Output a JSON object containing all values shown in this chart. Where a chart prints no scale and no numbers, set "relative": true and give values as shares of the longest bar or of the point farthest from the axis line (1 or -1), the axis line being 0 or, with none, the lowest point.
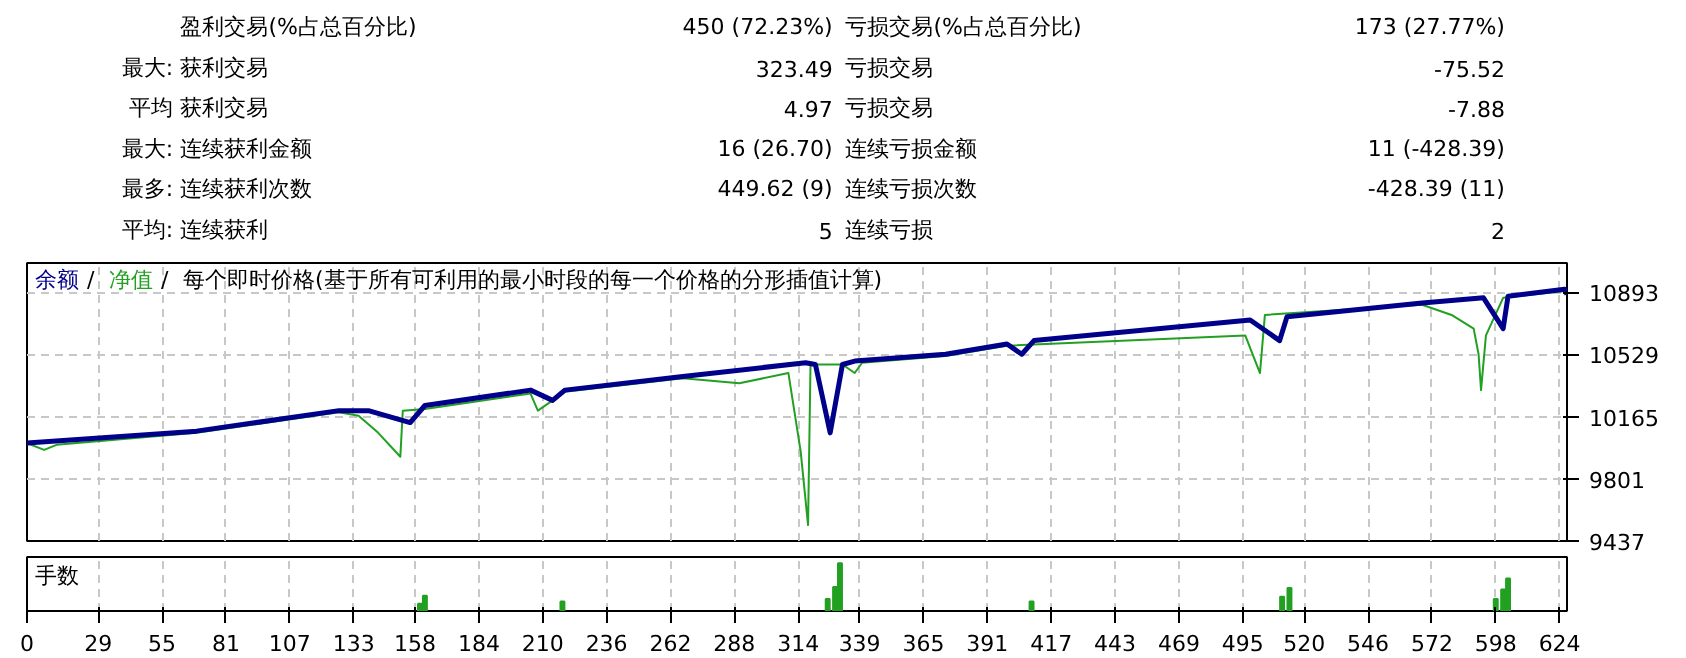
{
  "chart_data": [
    {
      "type": "other",
      "cells": [
        [
          null,
          "盈利交易(%占总百分比)",
          "450 (72.23%)",
          "亏损交易(%占总百分比)",
          "173 (27.77%)"
        ],
        [
          "最大:",
          "获利交易",
          "323.49",
          "亏损交易",
          "-75.52"
        ],
        [
          "平均",
          "获利交易",
          "4.97",
          "亏损交易",
          "-7.88"
        ],
        [
          "最大:",
          "连续获利金额",
          "16 (26.70)",
          "连续亏损金额",
          "11 (-428.39)"
        ],
        [
          "最多:",
          "连续获利次数",
          "449.62 (9)",
          "连续亏损次数",
          "-428.39 (11)"
        ],
        [
          "平均:",
          "连续获利",
          "5",
          "连续亏损",
          "2"
        ]
      ]
    },
    {
      "type": "line",
      "annotations": [
        "/",
        "/"
      ],
      "subtitle": "每个即时价格(基于所有可利用的最小时段的每一个价格的分形插值计算)",
      "legend": "top left",
      "grid": true,
      "tick_labels": "y",
      "xlim": [
        0,
        627
      ],
      "xticks": [
        0,
        29,
        55,
        81,
        107,
        133,
        158,
        184,
        210,
        236,
        262,
        288,
        314,
        339,
        365,
        391,
        417,
        443,
        469,
        495,
        520,
        546,
        572,
        598,
        624
      ],
      "ylim": [
        9437,
        11064
      ],
      "yticks": [
        9437,
        9801,
        10165,
        10529,
        10893
      ],
      "series": [
        {
          "name": "净值",
          "color": "#22a022",
          "x": [
            0,
            7,
            12,
            69,
            127,
            135,
            143,
            152,
            153,
            162,
            205,
            208,
            214,
            219,
            267,
            290,
            310,
            315,
            318,
            319,
            332,
            337,
            340,
            374,
            399,
            496,
            502,
            504,
            568,
            580,
            589,
            591,
            592,
            594,
            601,
            626,
            627
          ],
          "values": [
            10010,
            9970,
            10000,
            10070,
            10190,
            10170,
            10070,
            9930,
            10200,
            10210,
            10300,
            10200,
            10260,
            10310,
            10390,
            10360,
            10420,
            9960,
            9530,
            10470,
            10470,
            10420,
            10480,
            10520,
            10580,
            10640,
            10420,
            10760,
            10820,
            10760,
            10680,
            10530,
            10320,
            10640,
            10860,
            10900,
            10880
          ]
        },
        {
          "name": "余额",
          "color": "#00008b",
          "x": [
            0,
            69,
            127,
            139,
            156,
            162,
            205,
            214,
            219,
            267,
            317,
            321,
            327,
            332,
            337,
            374,
            399,
            405,
            410,
            498,
            510,
            513,
            568,
            593,
            601,
            603,
            626,
            627
          ],
          "values": [
            10010,
            10080,
            10200,
            10200,
            10130,
            10230,
            10320,
            10260,
            10320,
            10400,
            10480,
            10470,
            10070,
            10470,
            10490,
            10530,
            10590,
            10530,
            10610,
            10730,
            10610,
            10750,
            10830,
            10860,
            10680,
            10870,
            10910,
            10880
          ]
        }
      ]
    },
    {
      "type": "bar",
      "title": "手数",
      "relative": true,
      "grid": "x",
      "tick_labels": "x",
      "color": "#22a022",
      "xlim": [
        0,
        627
      ],
      "xticks": [
        0,
        29,
        55,
        81,
        107,
        133,
        158,
        184,
        210,
        236,
        262,
        288,
        314,
        339,
        365,
        391,
        417,
        443,
        469,
        495,
        520,
        546,
        572,
        598,
        624
      ],
      "x": [
        160,
        162,
        218,
        326,
        329,
        331,
        409,
        511,
        514,
        598,
        601,
        603
      ],
      "values": [
        0.15,
        0.32,
        0.2,
        0.25,
        0.5,
        1.0,
        0.2,
        0.3,
        0.48,
        0.25,
        0.45,
        0.68
      ]
    }
  ]
}
